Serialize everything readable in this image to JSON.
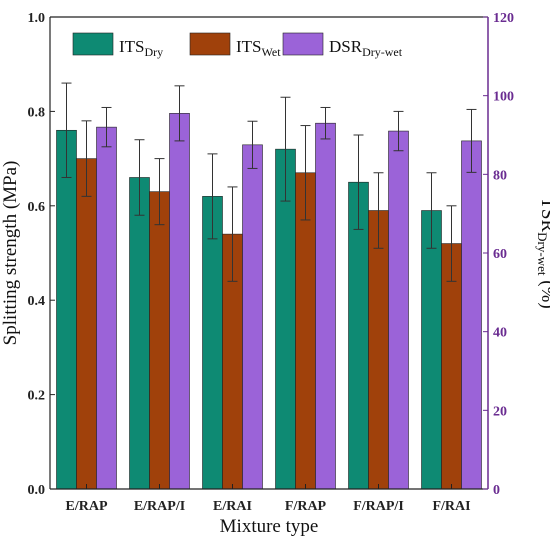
{
  "chart_data": {
    "type": "bar",
    "categories": [
      "E/RAP",
      "E/RAP/I",
      "E/RAI",
      "F/RAP",
      "F/RAP/I",
      "F/RAI"
    ],
    "xlabel": "Mixture type",
    "ylabel": "Splitting strength (MPa)",
    "y2label_main": "TSR",
    "y2label_sub": "Dry-wet",
    "y2label_unit": "(%)",
    "ylim": [
      0,
      1.0
    ],
    "y2lim": [
      0,
      120
    ],
    "yticks": [
      "0.0",
      "0.2",
      "0.4",
      "0.6",
      "0.8",
      "1.0"
    ],
    "y2ticks": [
      "0",
      "20",
      "40",
      "60",
      "80",
      "100",
      "120"
    ],
    "grid": false,
    "legend_position": "top",
    "series": [
      {
        "name_main": "ITS",
        "name_sub": "Dry",
        "axis": "left",
        "color": "#0e8a73",
        "values": [
          0.76,
          0.66,
          0.62,
          0.72,
          0.65,
          0.59
        ],
        "errors": [
          0.1,
          0.08,
          0.09,
          0.11,
          0.1,
          0.08
        ]
      },
      {
        "name_main": "ITS",
        "name_sub": "Wet",
        "axis": "left",
        "color": "#a0410b",
        "values": [
          0.7,
          0.63,
          0.54,
          0.67,
          0.59,
          0.52
        ],
        "errors": [
          0.08,
          0.07,
          0.1,
          0.1,
          0.08,
          0.08
        ]
      },
      {
        "name_main": "DSR",
        "name_sub": "Dry-wet",
        "axis": "right",
        "color": "#9b63d8",
        "values": [
          92,
          95.5,
          87.5,
          93,
          91,
          88.5
        ],
        "errors": [
          5,
          7,
          6,
          4,
          5,
          8
        ]
      }
    ],
    "right_axis_color": "#6a2c91"
  }
}
